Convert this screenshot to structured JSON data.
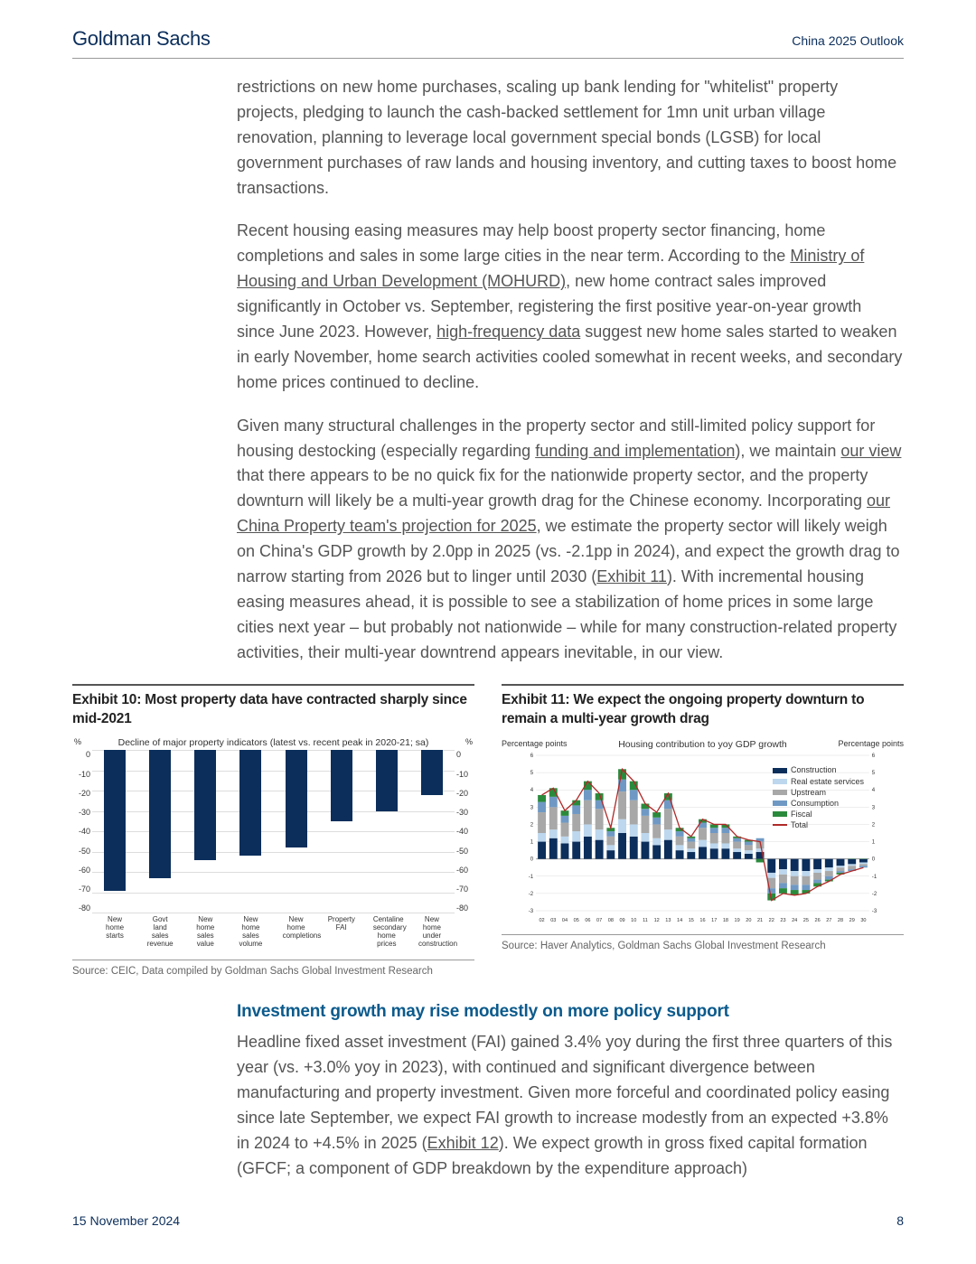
{
  "header": {
    "brand": "Goldman Sachs",
    "doc_title": "China 2025 Outlook"
  },
  "footer": {
    "date": "15 November 2024",
    "page": "8"
  },
  "paragraphs": {
    "p1": "restrictions on new home purchases, scaling up bank lending for \"whitelist\" property projects, pledging to launch the cash-backed settlement for 1mn unit urban village renovation, planning to leverage local government special bonds (LGSB) for local government purchases of raw lands and housing inventory, and cutting taxes to boost home transactions.",
    "p2a": "Recent housing easing measures may help boost property sector financing, home completions and sales in some large cities in the near term. According to the ",
    "p2_link1": "Ministry of Housing and Urban Development (MOHURD)",
    "p2b": ", new home contract sales improved significantly in October vs. September, registering the first positive year-on-year growth since June 2023. However, ",
    "p2_link2": "high-frequency data",
    "p2c": " suggest new home sales started to weaken in early November, home search activities cooled somewhat in recent weeks, and secondary home prices continued to decline.",
    "p3a": "Given many structural challenges in the property sector and still-limited policy support for housing destocking (especially regarding ",
    "p3_link1": "funding and implementation",
    "p3b": "), we maintain ",
    "p3_link2": "our view",
    "p3c": " that there appears to be no quick fix for the nationwide property sector, and the property downturn will likely be a multi-year growth drag for the Chinese economy. Incorporating ",
    "p3_link3": "our China Property team's projection for 2025",
    "p3d": ", we estimate the property sector will likely weigh on China's GDP growth by 2.0pp in 2025 (vs. -2.1pp in 2024), and expect the growth drag to narrow starting from 2026 but to linger until 2030 (",
    "p3_link4": "Exhibit 11",
    "p3e": "). With incremental housing easing measures ahead, it is possible to see a stabilization of home prices in some large cities next year – but probably not nationwide – while for many construction-related property activities, their multi-year downtrend appears inevitable, in our view.",
    "heading": "Investment growth may rise modestly on more policy support",
    "p4a": "Headline fixed asset investment (FAI) gained 3.4% yoy during the first three quarters of this year (vs. +3.0% yoy in 2023), with continued and significant divergence between manufacturing and property investment. Given more forceful and coordinated policy easing since late September, we expect FAI growth to increase modestly from an expected +3.8% in 2024 to +4.5% in 2025 (",
    "p4_link1": "Exhibit 12",
    "p4b": "). We expect growth in gross fixed capital formation (GFCF; a component of GDP breakdown by the expenditure approach)"
  },
  "exhibit10": {
    "title": "Exhibit 10: Most property data have contracted sharply since mid-2021",
    "subtitle": "Decline of major property indicators (latest vs. recent peak in 2020-21; sa)",
    "y_unit": "%",
    "ylim": [
      -80,
      0
    ],
    "ytick_step": 10,
    "categories": [
      "New home starts",
      "Govt land sales revenue",
      "New home sales value",
      "New home sales volume",
      "New home completions",
      "Property FAI",
      "Centaline secondary home prices",
      "New home under construction"
    ],
    "values": [
      -69,
      -63,
      -54,
      -52,
      -48,
      -35,
      -30,
      -22
    ],
    "bar_color": "#0b2e5b",
    "grid_color": "#dddddd",
    "source": "Source: CEIC, Data compiled by Goldman Sachs Global Investment Research"
  },
  "exhibit11": {
    "title": "Exhibit 11: We expect the ongoing property downturn to remain a multi-year growth drag",
    "subtitle": "Housing contribution to yoy GDP growth",
    "y_unit": "Percentage points",
    "ylim": [
      -3,
      6
    ],
    "ytick_step": 1,
    "x_start": 2002,
    "x_end": 2030,
    "series": [
      {
        "name": "Construction",
        "color": "#0b2e5b"
      },
      {
        "name": "Real estate services",
        "color": "#bcd7ee"
      },
      {
        "name": "Upstream",
        "color": "#a8a8a8"
      },
      {
        "name": "Consumption",
        "color": "#6f99c4"
      },
      {
        "name": "Fiscal",
        "color": "#2a8a3c"
      },
      {
        "name": "Total",
        "color": "#b02a2a"
      }
    ],
    "years": [
      "02",
      "03",
      "04",
      "05",
      "06",
      "07",
      "08",
      "09",
      "10",
      "11",
      "12",
      "13",
      "14",
      "15",
      "16",
      "17",
      "18",
      "19",
      "20",
      "21",
      "22",
      "23",
      "24",
      "25",
      "26",
      "27",
      "28",
      "29",
      "30"
    ],
    "stacks": [
      {
        "construction": 1.0,
        "res": 0.5,
        "upstream": 1.2,
        "consumption": 0.6,
        "fiscal": 0.4
      },
      {
        "construction": 1.2,
        "res": 0.5,
        "upstream": 1.3,
        "consumption": 0.6,
        "fiscal": 0.5
      },
      {
        "construction": 0.9,
        "res": 0.4,
        "upstream": 0.8,
        "consumption": 0.4,
        "fiscal": 0.3
      },
      {
        "construction": 1.0,
        "res": 0.6,
        "upstream": 1.0,
        "consumption": 0.5,
        "fiscal": 0.3
      },
      {
        "construction": 1.3,
        "res": 0.7,
        "upstream": 1.4,
        "consumption": 0.6,
        "fiscal": 0.5
      },
      {
        "construction": 1.1,
        "res": 0.6,
        "upstream": 1.2,
        "consumption": 0.5,
        "fiscal": 0.4
      },
      {
        "construction": 0.5,
        "res": 0.3,
        "upstream": 0.5,
        "consumption": 0.3,
        "fiscal": 0.2
      },
      {
        "construction": 1.5,
        "res": 0.8,
        "upstream": 1.6,
        "consumption": 0.7,
        "fiscal": 0.6
      },
      {
        "construction": 1.3,
        "res": 0.7,
        "upstream": 1.4,
        "consumption": 0.6,
        "fiscal": 0.5
      },
      {
        "construction": 1.0,
        "res": 0.5,
        "upstream": 1.0,
        "consumption": 0.4,
        "fiscal": 0.3
      },
      {
        "construction": 0.8,
        "res": 0.4,
        "upstream": 0.8,
        "consumption": 0.4,
        "fiscal": 0.3
      },
      {
        "construction": 1.1,
        "res": 0.6,
        "upstream": 1.2,
        "consumption": 0.5,
        "fiscal": 0.4
      },
      {
        "construction": 0.5,
        "res": 0.3,
        "upstream": 0.5,
        "consumption": 0.3,
        "fiscal": 0.2
      },
      {
        "construction": 0.4,
        "res": 0.2,
        "upstream": 0.4,
        "consumption": 0.2,
        "fiscal": 0.1
      },
      {
        "construction": 0.7,
        "res": 0.4,
        "upstream": 0.7,
        "consumption": 0.3,
        "fiscal": 0.2
      },
      {
        "construction": 0.6,
        "res": 0.3,
        "upstream": 0.6,
        "consumption": 0.3,
        "fiscal": 0.2
      },
      {
        "construction": 0.6,
        "res": 0.3,
        "upstream": 0.6,
        "consumption": 0.3,
        "fiscal": 0.2
      },
      {
        "construction": 0.4,
        "res": 0.2,
        "upstream": 0.4,
        "consumption": 0.2,
        "fiscal": 0.1
      },
      {
        "construction": 0.3,
        "res": 0.2,
        "upstream": 0.3,
        "consumption": 0.2,
        "fiscal": 0.1
      },
      {
        "construction": 0.4,
        "res": 0.2,
        "upstream": 0.4,
        "consumption": 0.2,
        "fiscal": -0.2
      },
      {
        "construction": -0.8,
        "res": -0.3,
        "upstream": -0.6,
        "consumption": -0.3,
        "fiscal": -0.4
      },
      {
        "construction": -0.6,
        "res": -0.3,
        "upstream": -0.5,
        "consumption": -0.3,
        "fiscal": -0.3
      },
      {
        "construction": -0.7,
        "res": -0.3,
        "upstream": -0.5,
        "consumption": -0.3,
        "fiscal": -0.3
      },
      {
        "construction": -0.7,
        "res": -0.3,
        "upstream": -0.5,
        "consumption": -0.3,
        "fiscal": -0.2
      },
      {
        "construction": -0.6,
        "res": -0.2,
        "upstream": -0.4,
        "consumption": -0.2,
        "fiscal": -0.2
      },
      {
        "construction": -0.5,
        "res": -0.2,
        "upstream": -0.3,
        "consumption": -0.2,
        "fiscal": -0.1
      },
      {
        "construction": -0.4,
        "res": -0.1,
        "upstream": -0.2,
        "consumption": -0.1,
        "fiscal": -0.1
      },
      {
        "construction": -0.3,
        "res": -0.1,
        "upstream": -0.2,
        "consumption": -0.1,
        "fiscal": 0.0
      },
      {
        "construction": -0.2,
        "res": -0.1,
        "upstream": -0.1,
        "consumption": -0.1,
        "fiscal": 0.0
      }
    ],
    "total_line": [
      3.7,
      4.1,
      2.8,
      3.4,
      4.5,
      3.8,
      1.8,
      5.2,
      4.5,
      3.2,
      2.7,
      3.8,
      1.8,
      1.3,
      2.3,
      2.0,
      2.0,
      1.3,
      1.1,
      1.0,
      -2.4,
      -2.0,
      -2.1,
      -2.0,
      -1.6,
      -1.3,
      -0.9,
      -0.7,
      -0.5
    ],
    "source": "Source: Haver Analytics, Goldman Sachs Global Investment Research"
  }
}
